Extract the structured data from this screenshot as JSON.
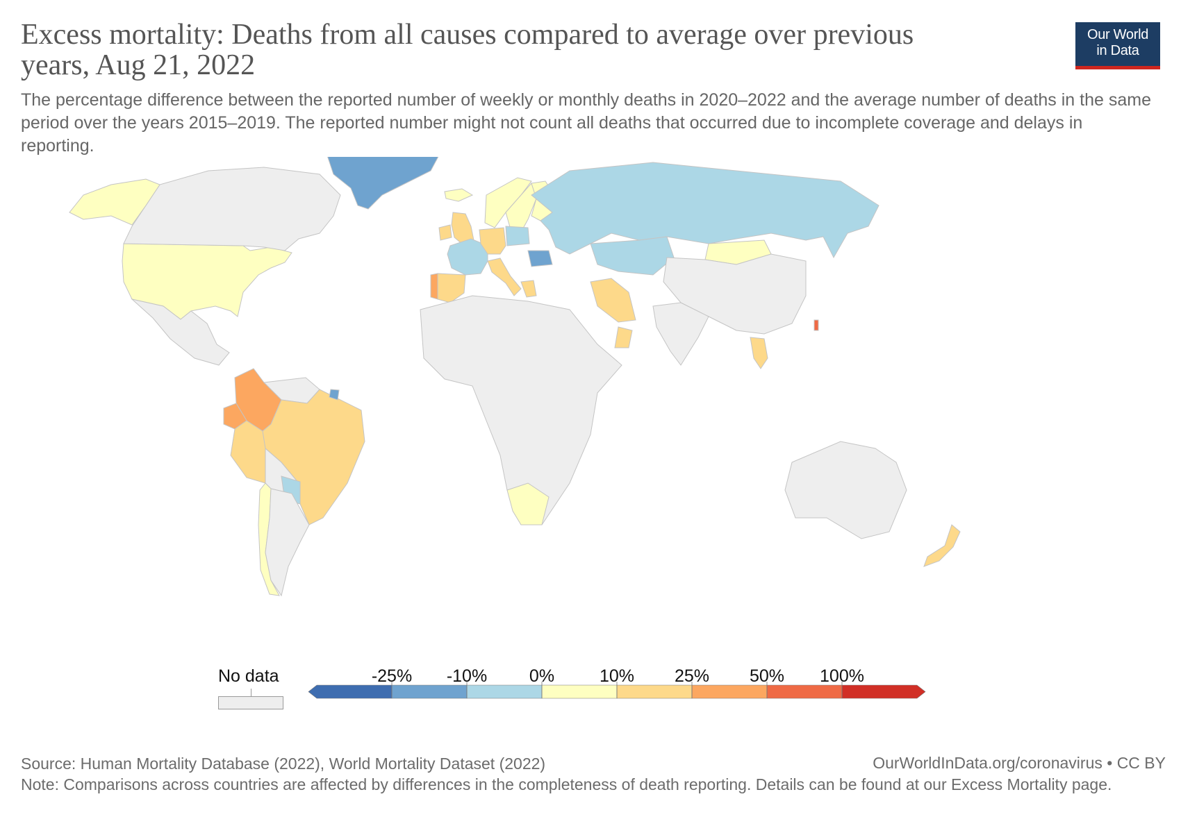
{
  "title": "Excess mortality: Deaths from all causes compared to average over previous years, Aug 21, 2022",
  "subtitle": "The percentage difference between the reported number of weekly or monthly deaths in 2020–2022 and the average number of deaths in the same period over the years 2015–2019. The reported number might not count all deaths that occurred due to incomplete coverage and delays in reporting.",
  "logo": {
    "line1": "Our World",
    "line2": "in Data"
  },
  "legend": {
    "no_data_label": "No data",
    "ticks": [
      "-25%",
      "-10%",
      "0%",
      "10%",
      "25%",
      "50%",
      "100%"
    ],
    "bin_colors": [
      "#3e6db0",
      "#6fa3cf",
      "#acd7e6",
      "#feffc1",
      "#fdd98a",
      "#fca760",
      "#ef6a45",
      "#d12f26"
    ],
    "no_data_color": "#eeeeee"
  },
  "colors": {
    "no_data": "#eeeeee",
    "border": "#c8c8c8"
  },
  "countries": [
    {
      "name": "United States",
      "bin": 3
    },
    {
      "name": "Canada",
      "bin": -1
    },
    {
      "name": "Alaska (United States)",
      "bin": 3
    },
    {
      "name": "Mexico",
      "bin": -1
    },
    {
      "name": "Greenland",
      "bin": 1
    },
    {
      "name": "Colombia",
      "bin": 5
    },
    {
      "name": "Ecuador",
      "bin": 5
    },
    {
      "name": "Peru",
      "bin": 4
    },
    {
      "name": "Brazil",
      "bin": 4
    },
    {
      "name": "Chile",
      "bin": 3
    },
    {
      "name": "Paraguay",
      "bin": 2
    },
    {
      "name": "Suriname",
      "bin": 1
    },
    {
      "name": "Argentina",
      "bin": -1
    },
    {
      "name": "Bolivia",
      "bin": -1
    },
    {
      "name": "Venezuela",
      "bin": -1
    },
    {
      "name": "Russia",
      "bin": 2
    },
    {
      "name": "Kazakhstan",
      "bin": 2
    },
    {
      "name": "Mongolia",
      "bin": 3
    },
    {
      "name": "China",
      "bin": -1
    },
    {
      "name": "Iran",
      "bin": 4
    },
    {
      "name": "Oman",
      "bin": 4
    },
    {
      "name": "Thailand",
      "bin": 4
    },
    {
      "name": "Taiwan",
      "bin": 6
    },
    {
      "name": "India",
      "bin": -1
    },
    {
      "name": "South Africa",
      "bin": 3
    },
    {
      "name": "Australia",
      "bin": -1
    },
    {
      "name": "New Zealand",
      "bin": 4
    },
    {
      "name": "Norway",
      "bin": 3
    },
    {
      "name": "Sweden",
      "bin": 3
    },
    {
      "name": "Finland",
      "bin": 3
    },
    {
      "name": "United Kingdom",
      "bin": 4
    },
    {
      "name": "Ireland",
      "bin": 4
    },
    {
      "name": "Spain",
      "bin": 4
    },
    {
      "name": "Portugal",
      "bin": 5
    },
    {
      "name": "France",
      "bin": 2
    },
    {
      "name": "Germany",
      "bin": 4
    },
    {
      "name": "Poland",
      "bin": 2
    },
    {
      "name": "Italy",
      "bin": 4
    },
    {
      "name": "Romania",
      "bin": 1
    },
    {
      "name": "Greece",
      "bin": 4
    },
    {
      "name": "Iceland",
      "bin": 3
    }
  ],
  "footer": {
    "source": "Source: Human Mortality Database (2022), World Mortality Dataset (2022)",
    "credit": "OurWorldInData.org/coronavirus • CC BY",
    "note": "Note: Comparisons across countries are affected by differences in the completeness of death reporting. Details can be found at our Excess Mortality page."
  }
}
